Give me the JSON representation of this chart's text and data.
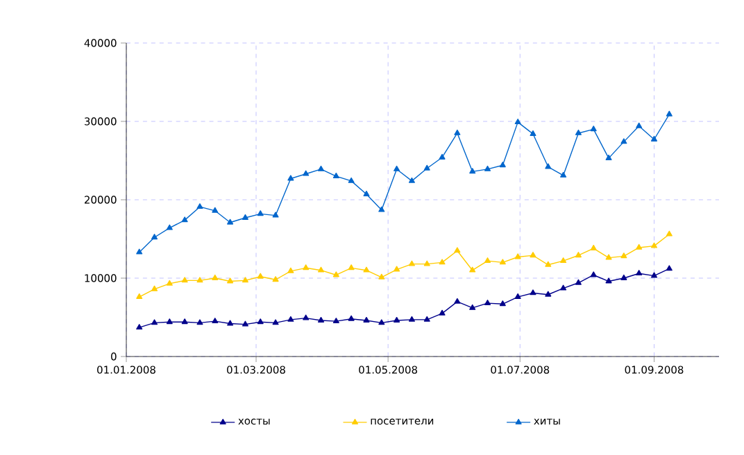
{
  "chart_data": {
    "type": "line",
    "x": [
      "2008-01-07",
      "2008-01-14",
      "2008-01-21",
      "2008-01-28",
      "2008-02-04",
      "2008-02-11",
      "2008-02-18",
      "2008-02-25",
      "2008-03-03",
      "2008-03-10",
      "2008-03-17",
      "2008-03-24",
      "2008-03-31",
      "2008-04-07",
      "2008-04-14",
      "2008-04-21",
      "2008-04-28",
      "2008-05-05",
      "2008-05-12",
      "2008-05-19",
      "2008-05-26",
      "2008-06-02",
      "2008-06-09",
      "2008-06-16",
      "2008-06-23",
      "2008-06-30",
      "2008-07-07",
      "2008-07-14",
      "2008-07-21",
      "2008-07-28",
      "2008-08-04",
      "2008-08-11",
      "2008-08-18",
      "2008-08-25",
      "2008-09-01",
      "2008-09-08"
    ],
    "series": [
      {
        "name": "хосты",
        "color": "#00008b",
        "values": [
          3700,
          4300,
          4400,
          4400,
          4300,
          4500,
          4200,
          4100,
          4400,
          4300,
          4700,
          4900,
          4600,
          4500,
          4800,
          4600,
          4300,
          4600,
          4700,
          4700,
          5500,
          7000,
          6200,
          6800,
          6700,
          7600,
          8100,
          7900,
          8700,
          9400,
          10400,
          9600,
          10000,
          10600,
          10300,
          11200
        ]
      },
      {
        "name": "посетители",
        "color": "#ffcc00",
        "values": [
          7600,
          8600,
          9300,
          9700,
          9700,
          10000,
          9600,
          9700,
          10200,
          9800,
          10900,
          11300,
          11000,
          10400,
          11300,
          11000,
          10100,
          11100,
          11800,
          11800,
          12000,
          13500,
          11000,
          12200,
          12000,
          12700,
          12900,
          11700,
          12200,
          12900,
          13800,
          12600,
          12800,
          13900,
          14100,
          15600
        ]
      },
      {
        "name": "хиты",
        "color": "#0066cc",
        "values": [
          13300,
          15200,
          16400,
          17400,
          19100,
          18600,
          17100,
          17700,
          18200,
          18000,
          22700,
          23300,
          23900,
          23000,
          22400,
          20700,
          18700,
          23900,
          22400,
          24000,
          25400,
          28500,
          23600,
          23900,
          24400,
          29900,
          28400,
          24200,
          23100,
          28500,
          29000,
          25300,
          27400,
          29400,
          27700,
          30900
        ]
      }
    ],
    "xlim": [
      "2008-01-01",
      "2008-10-01"
    ],
    "xticks": [
      {
        "value": "2008-01-01",
        "label": "01.01.2008"
      },
      {
        "value": "2008-03-01",
        "label": "01.03.2008"
      },
      {
        "value": "2008-05-01",
        "label": "01.05.2008"
      },
      {
        "value": "2008-07-01",
        "label": "01.07.2008"
      },
      {
        "value": "2008-09-01",
        "label": "01.09.2008"
      }
    ],
    "ylim": [
      0,
      40000
    ],
    "yticks": [
      0,
      10000,
      20000,
      30000,
      40000
    ],
    "grid": true,
    "legend": "bottom",
    "marker": "triangle",
    "line_style": "solid"
  }
}
